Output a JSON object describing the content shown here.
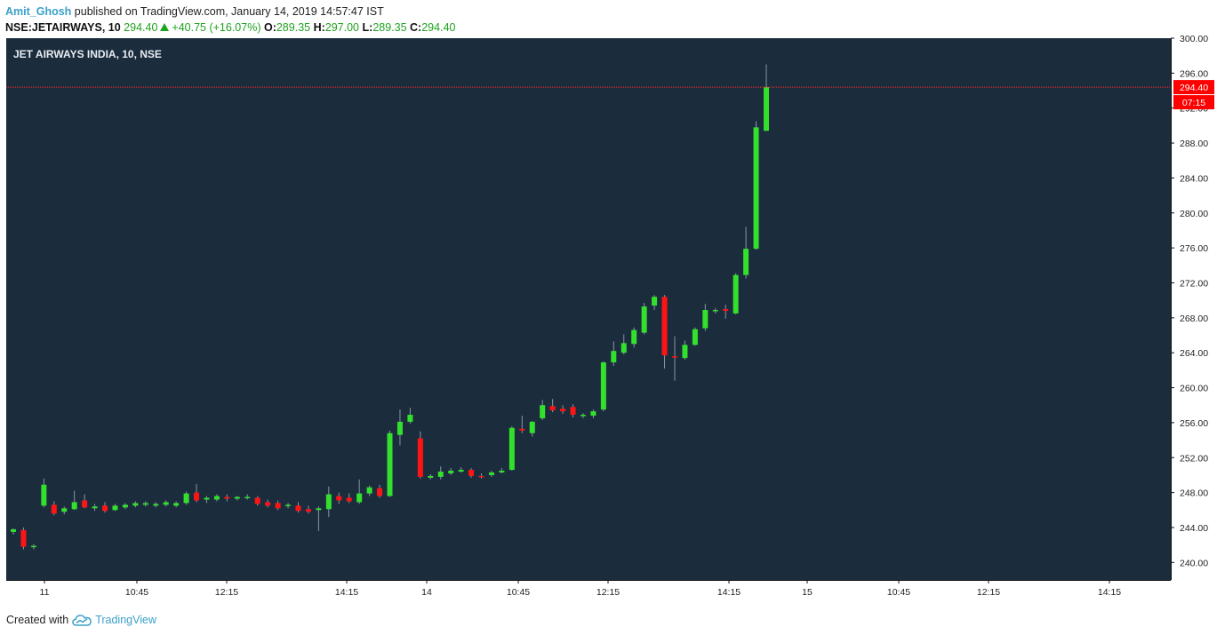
{
  "header": {
    "author": "Amit_Ghosh",
    "published_text": " published on TradingView.com, January 14, 2019 14:57:47 IST",
    "symbol": "NSE:JETAIRWAYS, 10",
    "last": "294.40",
    "change": "+40.75 (+16.07%)",
    "open_label": "O:",
    "open": "289.35",
    "high_label": "H:",
    "high": "297.00",
    "low_label": "L:",
    "low": "289.35",
    "close_label": "C:",
    "close": "294.40"
  },
  "footer": {
    "created_text": "Created with",
    "brand": "TradingView",
    "logo_icon": "tradingview-cloud-icon"
  },
  "colors": {
    "background": "#1b2c3d",
    "up": "#33e12c",
    "down": "#ff1414",
    "wick": "#8a96a3",
    "price_line": "#ff2a2a"
  },
  "chart_data": {
    "type": "candlestick",
    "title": "JET AIRWAYS INDIA, 10, NSE",
    "ylim": [
      238,
      300
    ],
    "y_ticks": [
      "300.00",
      "296.00",
      "292.00",
      "288.00",
      "284.00",
      "280.00",
      "276.00",
      "272.00",
      "268.00",
      "264.00",
      "260.00",
      "256.00",
      "252.00",
      "248.00",
      "244.00",
      "240.00"
    ],
    "x_ticks": [
      "11",
      "10:45",
      "12:15",
      "14:15",
      "14",
      "10:45",
      "12:15",
      "14:15",
      "15",
      "10:45",
      "12:15",
      "14:15"
    ],
    "last_price": "294.40",
    "countdown": "07:15",
    "candles": [
      [
        243.5,
        243.9,
        243.2,
        243.8
      ],
      [
        243.7,
        244.0,
        241.5,
        241.8
      ],
      [
        241.8,
        242.1,
        241.5,
        241.9
      ],
      [
        246.5,
        249.6,
        246.3,
        248.9
      ],
      [
        246.6,
        247.0,
        245.4,
        245.6
      ],
      [
        245.8,
        246.4,
        245.5,
        246.2
      ],
      [
        246.1,
        248.2,
        246.0,
        246.9
      ],
      [
        247.1,
        247.8,
        246.2,
        246.3
      ],
      [
        246.2,
        246.7,
        245.9,
        246.4
      ],
      [
        246.5,
        246.9,
        245.7,
        245.9
      ],
      [
        246.0,
        246.7,
        245.9,
        246.5
      ],
      [
        246.3,
        246.8,
        246.1,
        246.6
      ],
      [
        246.5,
        247.0,
        246.3,
        246.8
      ],
      [
        246.6,
        247.0,
        246.4,
        246.8
      ],
      [
        246.5,
        246.9,
        246.3,
        246.7
      ],
      [
        246.6,
        247.1,
        246.4,
        246.9
      ],
      [
        246.5,
        247.0,
        246.3,
        246.8
      ],
      [
        246.8,
        248.1,
        246.6,
        247.9
      ],
      [
        248.0,
        249.0,
        246.9,
        247.1
      ],
      [
        247.2,
        247.6,
        246.8,
        247.4
      ],
      [
        247.2,
        247.8,
        247.0,
        247.6
      ],
      [
        247.5,
        247.8,
        247.0,
        247.3
      ],
      [
        247.3,
        247.6,
        247.1,
        247.5
      ],
      [
        247.4,
        247.8,
        247.2,
        247.5
      ],
      [
        247.4,
        247.6,
        246.5,
        246.7
      ],
      [
        246.9,
        247.2,
        246.3,
        246.5
      ],
      [
        246.8,
        247.1,
        246.0,
        246.2
      ],
      [
        246.5,
        246.8,
        246.2,
        246.6
      ],
      [
        246.5,
        246.9,
        245.7,
        245.9
      ],
      [
        246.1,
        246.5,
        245.6,
        245.8
      ],
      [
        246.0,
        246.4,
        243.6,
        246.2
      ],
      [
        246.1,
        248.7,
        245.2,
        247.8
      ],
      [
        247.6,
        248.0,
        246.7,
        247.1
      ],
      [
        247.4,
        247.9,
        246.8,
        247.0
      ],
      [
        246.9,
        249.5,
        246.7,
        247.9
      ],
      [
        247.9,
        248.8,
        247.6,
        248.6
      ],
      [
        248.5,
        248.9,
        247.4,
        247.6
      ],
      [
        247.6,
        255.1,
        247.5,
        254.8
      ],
      [
        254.6,
        257.5,
        253.4,
        256.1
      ],
      [
        256.1,
        257.7,
        255.9,
        256.9
      ],
      [
        254.2,
        255.0,
        249.6,
        249.8
      ],
      [
        249.7,
        250.1,
        249.5,
        249.9
      ],
      [
        249.8,
        251.0,
        249.5,
        250.4
      ],
      [
        250.2,
        250.8,
        250.0,
        250.5
      ],
      [
        250.4,
        250.9,
        250.3,
        250.6
      ],
      [
        250.6,
        250.8,
        249.7,
        249.9
      ],
      [
        249.9,
        250.2,
        249.6,
        249.8
      ],
      [
        250.0,
        250.5,
        249.8,
        250.3
      ],
      [
        250.3,
        250.8,
        250.2,
        250.5
      ],
      [
        250.6,
        255.6,
        250.5,
        255.4
      ],
      [
        255.3,
        256.8,
        254.8,
        255.1
      ],
      [
        254.8,
        256.2,
        254.4,
        256.1
      ],
      [
        256.5,
        258.6,
        256.3,
        258.0
      ],
      [
        257.9,
        258.7,
        257.2,
        257.4
      ],
      [
        257.6,
        258.0,
        257.0,
        257.3
      ],
      [
        257.8,
        258.1,
        256.6,
        256.9
      ],
      [
        256.8,
        257.1,
        256.5,
        256.9
      ],
      [
        256.8,
        257.5,
        256.5,
        257.3
      ],
      [
        257.5,
        263.0,
        257.3,
        262.9
      ],
      [
        262.9,
        265.3,
        262.5,
        264.2
      ],
      [
        264.0,
        266.1,
        263.8,
        265.1
      ],
      [
        265.0,
        266.9,
        264.6,
        266.6
      ],
      [
        266.3,
        269.7,
        266.1,
        269.3
      ],
      [
        269.4,
        270.6,
        268.9,
        270.4
      ],
      [
        270.4,
        270.6,
        262.2,
        263.7
      ],
      [
        263.6,
        265.9,
        260.8,
        263.5
      ],
      [
        263.4,
        265.4,
        263.2,
        264.9
      ],
      [
        264.9,
        266.9,
        264.8,
        266.7
      ],
      [
        266.8,
        269.6,
        266.5,
        268.9
      ],
      [
        268.8,
        269.1,
        268.5,
        268.9
      ],
      [
        269.0,
        269.5,
        267.9,
        268.8
      ],
      [
        268.5,
        273.1,
        268.4,
        272.9
      ],
      [
        272.9,
        278.4,
        272.5,
        275.9
      ],
      [
        275.9,
        290.5,
        275.8,
        289.8
      ],
      [
        289.4,
        297.0,
        289.35,
        294.4
      ]
    ]
  }
}
